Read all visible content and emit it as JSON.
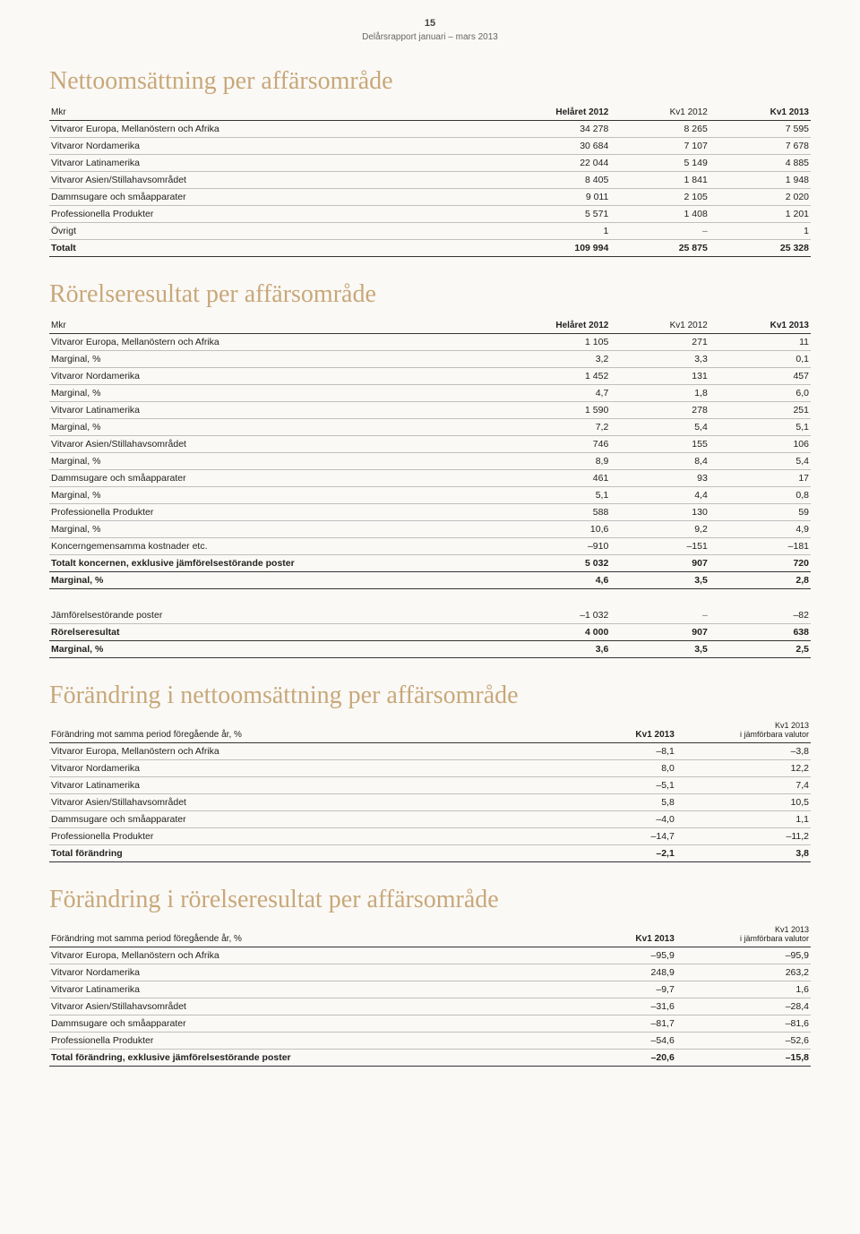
{
  "page": {
    "number": "15",
    "subtitle": "Delårsrapport januari – mars 2013"
  },
  "colors": {
    "heading": "#c7a87a",
    "background": "#fbf9f6",
    "rule": "#bfbfbf",
    "rule_strong": "#333333",
    "text": "#222222"
  },
  "sections": {
    "netSales": {
      "title": "Nettoomsättning per affärsområde",
      "unitLabel": "Mkr",
      "columns": [
        "Helåret 2012",
        "Kv1 2012",
        "Kv1 2013"
      ],
      "rows": [
        {
          "label": "Vitvaror Europa, Mellanöstern och Afrika",
          "v": [
            "34 278",
            "8 265",
            "7 595"
          ]
        },
        {
          "label": "Vitvaror Nordamerika",
          "v": [
            "30 684",
            "7 107",
            "7 678"
          ]
        },
        {
          "label": "Vitvaror Latinamerika",
          "v": [
            "22 044",
            "5 149",
            "4 885"
          ]
        },
        {
          "label": "Vitvaror Asien/Stillahavsområdet",
          "v": [
            "8 405",
            "1 841",
            "1 948"
          ]
        },
        {
          "label": "Dammsugare och småapparater",
          "v": [
            "9 011",
            "2 105",
            "2 020"
          ]
        },
        {
          "label": "Professionella Produkter",
          "v": [
            "5 571",
            "1 408",
            "1 201"
          ]
        },
        {
          "label": "Övrigt",
          "v": [
            "1",
            "–",
            "1"
          ]
        }
      ],
      "total": {
        "label": "Totalt",
        "v": [
          "109 994",
          "25 875",
          "25 328"
        ]
      }
    },
    "opIncome": {
      "title": "Rörelseresultat per affärsområde",
      "unitLabel": "Mkr",
      "columns": [
        "Helåret 2012",
        "Kv1 2012",
        "Kv1 2013"
      ],
      "rows": [
        {
          "label": "Vitvaror Europa, Mellanöstern och Afrika",
          "v": [
            "1 105",
            "271",
            "11"
          ]
        },
        {
          "label": "Marginal, %",
          "v": [
            "3,2",
            "3,3",
            "0,1"
          ]
        },
        {
          "label": "Vitvaror Nordamerika",
          "v": [
            "1 452",
            "131",
            "457"
          ]
        },
        {
          "label": "Marginal, %",
          "v": [
            "4,7",
            "1,8",
            "6,0"
          ]
        },
        {
          "label": "Vitvaror Latinamerika",
          "v": [
            "1 590",
            "278",
            "251"
          ]
        },
        {
          "label": "Marginal, %",
          "v": [
            "7,2",
            "5,4",
            "5,1"
          ]
        },
        {
          "label": "Vitvaror Asien/Stillahavsområdet",
          "v": [
            "746",
            "155",
            "106"
          ]
        },
        {
          "label": "Marginal, %",
          "v": [
            "8,9",
            "8,4",
            "5,4"
          ]
        },
        {
          "label": "Dammsugare och småapparater",
          "v": [
            "461",
            "93",
            "17"
          ]
        },
        {
          "label": "Marginal, %",
          "v": [
            "5,1",
            "4,4",
            "0,8"
          ]
        },
        {
          "label": "Professionella Produkter",
          "v": [
            "588",
            "130",
            "59"
          ]
        },
        {
          "label": "Marginal, %",
          "v": [
            "10,6",
            "9,2",
            "4,9"
          ]
        },
        {
          "label": "Koncerngemensamma kostnader etc.",
          "v": [
            "–910",
            "–151",
            "–181"
          ]
        }
      ],
      "subTotal1": {
        "label": "Totalt koncernen, exklusive jämförelsestörande poster",
        "v": [
          "5 032",
          "907",
          "720"
        ]
      },
      "subMargin1": {
        "label": "Marginal, %",
        "v": [
          "4,6",
          "3,5",
          "2,8"
        ]
      },
      "itemsAffect": {
        "label": "Jämförelsestörande poster",
        "v": [
          "–1 032",
          "–",
          "–82"
        ]
      },
      "opResult": {
        "label": "Rörelseresultat",
        "v": [
          "4 000",
          "907",
          "638"
        ]
      },
      "opMargin": {
        "label": "Marginal, %",
        "v": [
          "3,6",
          "3,5",
          "2,5"
        ]
      }
    },
    "changeNetSales": {
      "title": "Förändring i nettoomsättning per affärsområde",
      "rowHeader": "Förändring mot samma period föregående år, %",
      "col1": "Kv1 2013",
      "col2a": "Kv1 2013",
      "col2b": "i jämförbara valutor",
      "rows": [
        {
          "label": "Vitvaror Europa, Mellanöstern och Afrika",
          "v": [
            "–8,1",
            "–3,8"
          ]
        },
        {
          "label": "Vitvaror Nordamerika",
          "v": [
            "8,0",
            "12,2"
          ]
        },
        {
          "label": "Vitvaror Latinamerika",
          "v": [
            "–5,1",
            "7,4"
          ]
        },
        {
          "label": "Vitvaror Asien/Stillahavsområdet",
          "v": [
            "5,8",
            "10,5"
          ]
        },
        {
          "label": "Dammsugare och småapparater",
          "v": [
            "–4,0",
            "1,1"
          ]
        },
        {
          "label": "Professionella Produkter",
          "v": [
            "–14,7",
            "–11,2"
          ]
        }
      ],
      "total": {
        "label": "Total förändring",
        "v": [
          "–2,1",
          "3,8"
        ]
      }
    },
    "changeOpIncome": {
      "title": "Förändring i rörelseresultat per affärsområde",
      "rowHeader": "Förändring mot samma period föregående år, %",
      "col1": "Kv1 2013",
      "col2a": "Kv1 2013",
      "col2b": "i jämförbara valutor",
      "rows": [
        {
          "label": "Vitvaror Europa, Mellanöstern och Afrika",
          "v": [
            "–95,9",
            "–95,9"
          ]
        },
        {
          "label": "Vitvaror Nordamerika",
          "v": [
            "248,9",
            "263,2"
          ]
        },
        {
          "label": "Vitvaror Latinamerika",
          "v": [
            "–9,7",
            "1,6"
          ]
        },
        {
          "label": "Vitvaror Asien/Stillahavsområdet",
          "v": [
            "–31,6",
            "–28,4"
          ]
        },
        {
          "label": "Dammsugare och småapparater",
          "v": [
            "–81,7",
            "–81,6"
          ]
        },
        {
          "label": "Professionella Produkter",
          "v": [
            "–54,6",
            "–52,6"
          ]
        }
      ],
      "total": {
        "label": "Total förändring, exklusive jämförelsestörande poster",
        "v": [
          "–20,6",
          "–15,8"
        ]
      }
    }
  }
}
